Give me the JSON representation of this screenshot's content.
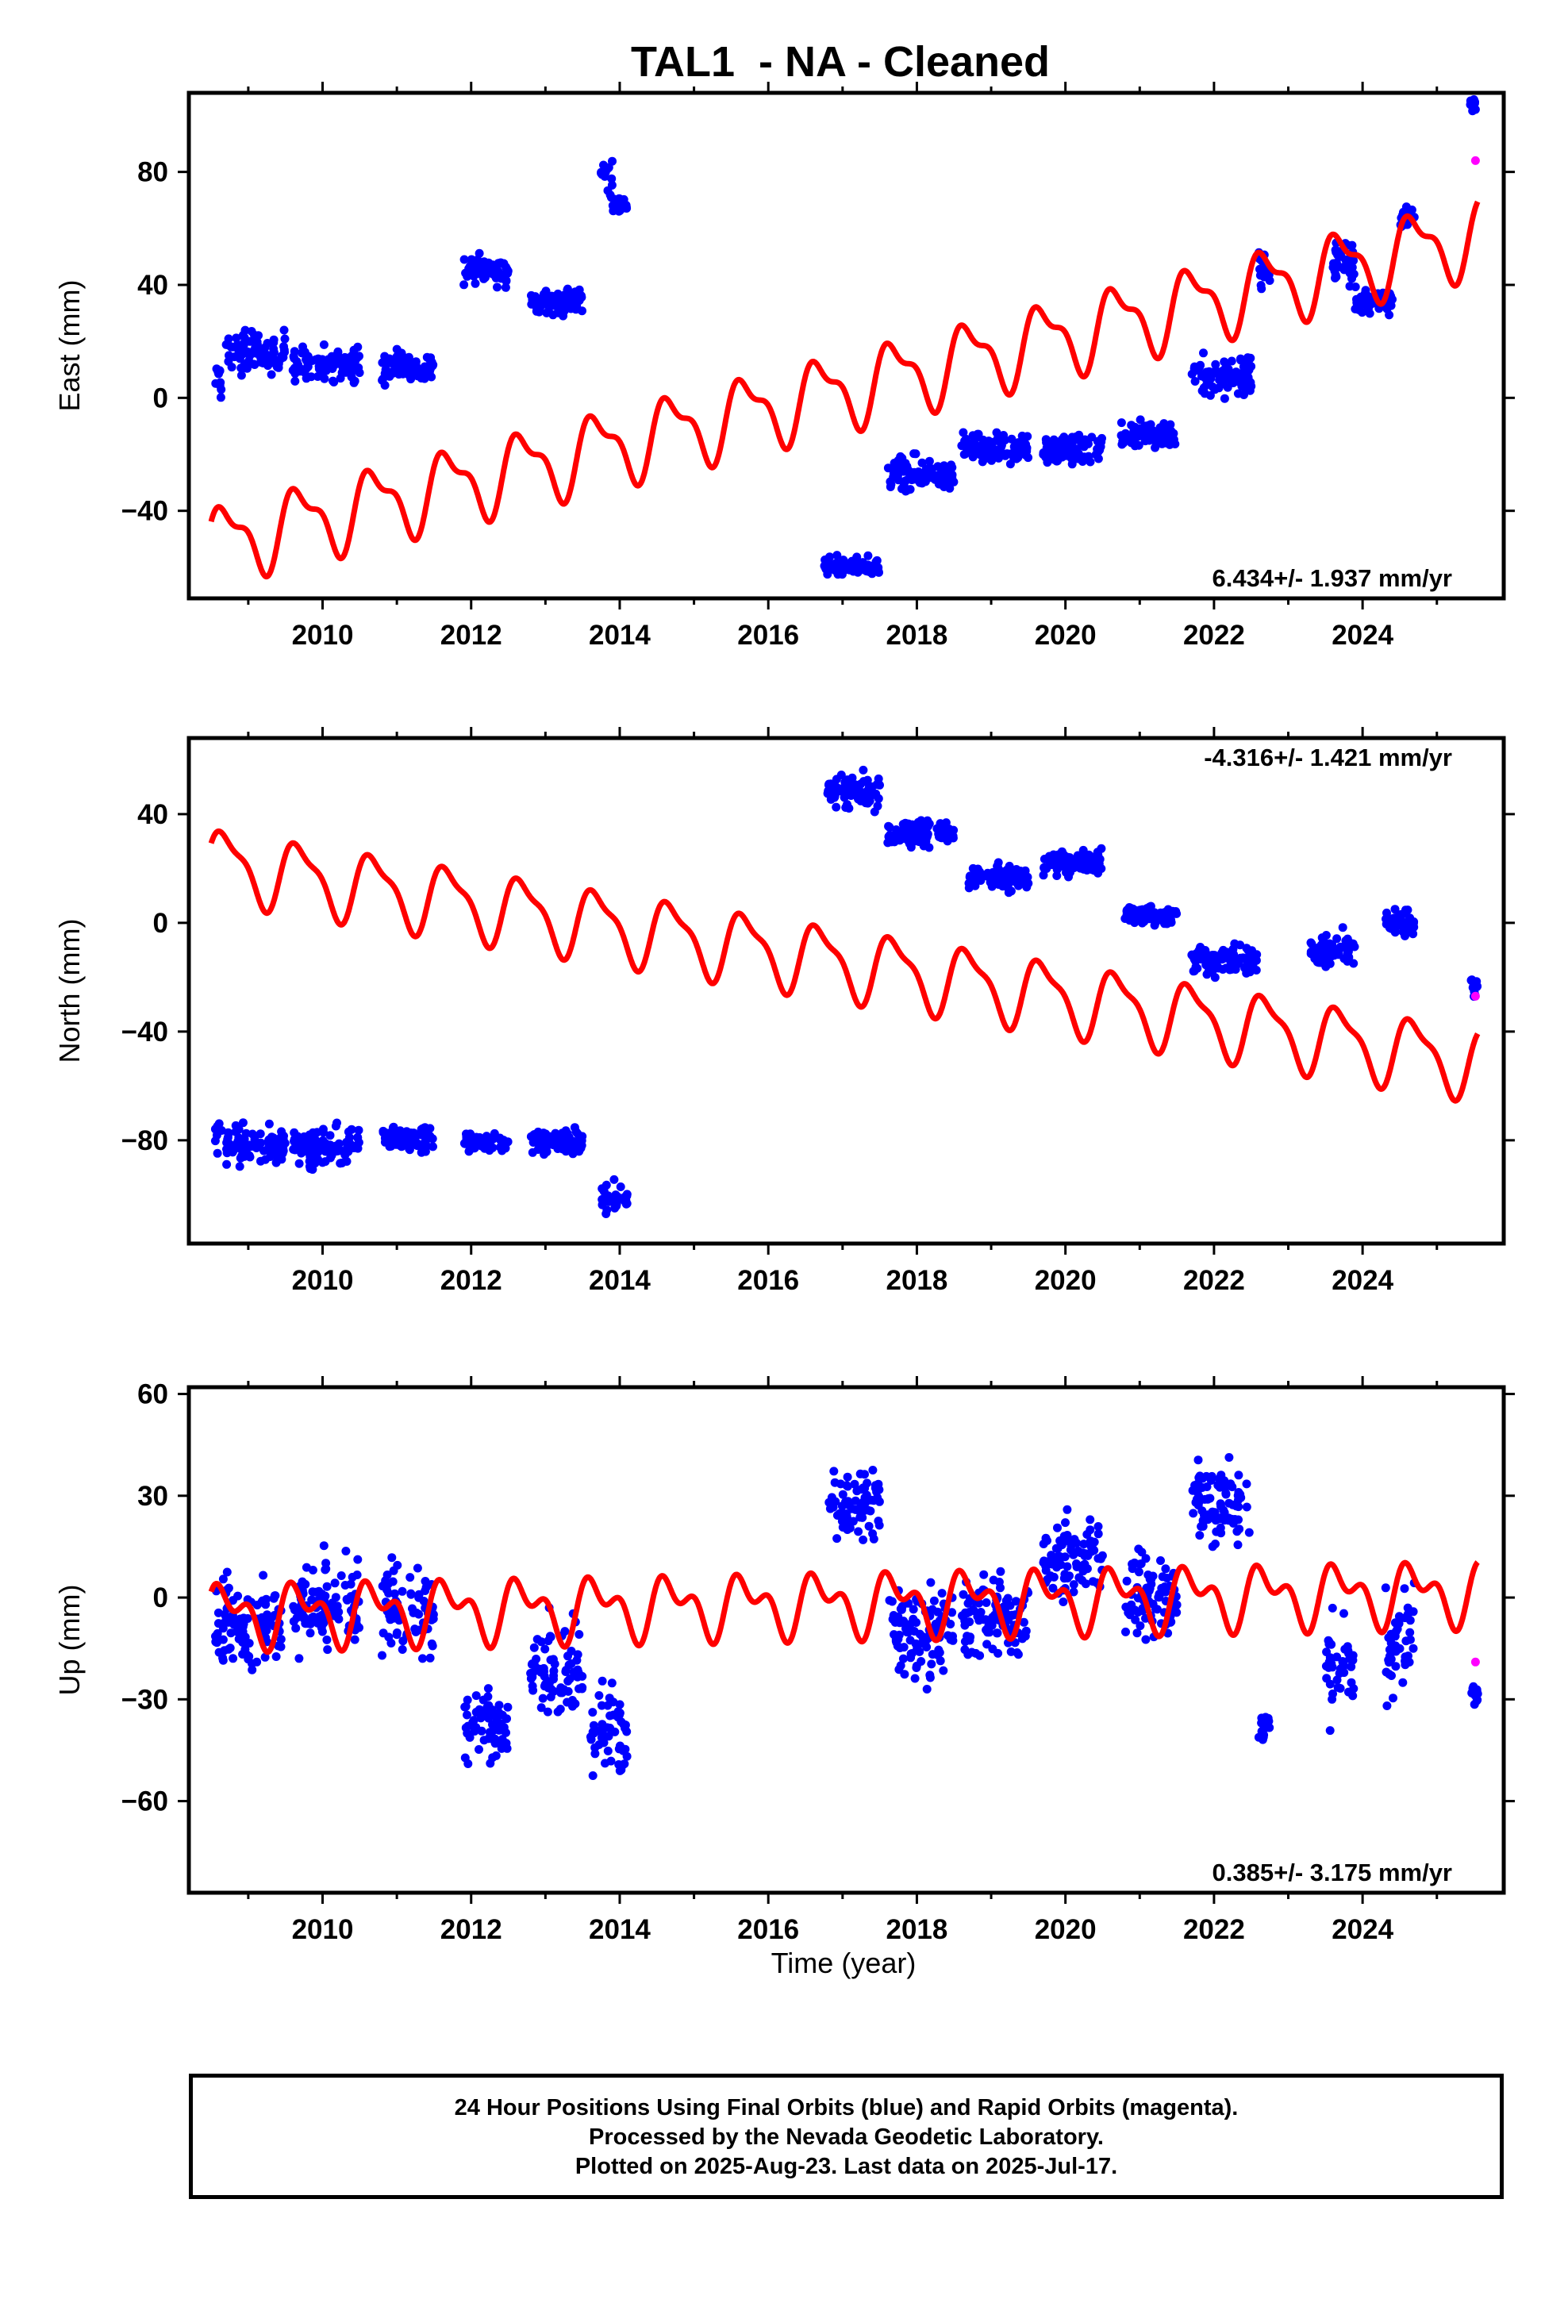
{
  "figure": {
    "title": "TAL1  - NA - Cleaned",
    "xlabel": "Time (year)",
    "colors": {
      "final_orbits": "#0000ff",
      "rapid_orbits": "#ff00ff",
      "model": "#ff0000",
      "frame": "#000000"
    }
  },
  "footer": {
    "line1": "24 Hour Positions Using Final Orbits (blue) and Rapid Orbits (magenta).",
    "line2": "Processed by the Nevada Geodetic Laboratory.",
    "line3": "Plotted on 2025-Aug-23. Last data on 2025-Jul-17."
  },
  "chart_data": [
    {
      "type": "scatter",
      "ylabel": "East (mm)",
      "rate_text": "6.434+/- 1.937 mm/yr",
      "rate_position": "bottom-right",
      "xlim": [
        2008.2,
        2025.9
      ],
      "ylim": [
        -71,
        108
      ],
      "xticks": [
        2010,
        2012,
        2014,
        2016,
        2018,
        2020,
        2022,
        2024
      ],
      "yticks": [
        -40,
        0,
        40,
        80
      ],
      "grid": false,
      "final_orbits_clusters": [
        {
          "t_start": 2008.55,
          "t_end": 2008.65,
          "mean": 6,
          "spread": 12
        },
        {
          "t_start": 2008.7,
          "t_end": 2009.5,
          "mean": 16,
          "spread": 12
        },
        {
          "t_start": 2009.6,
          "t_end": 2010.5,
          "mean": 12,
          "spread": 10
        },
        {
          "t_start": 2010.8,
          "t_end": 2011.5,
          "mean": 11,
          "spread": 10
        },
        {
          "t_start": 2011.9,
          "t_end": 2012.5,
          "mean": 45,
          "spread": 8
        },
        {
          "t_start": 2012.8,
          "t_end": 2013.5,
          "mean": 34,
          "spread": 8
        },
        {
          "t_start": 2013.75,
          "t_end": 2013.9,
          "mean": 78,
          "spread": 12
        },
        {
          "t_start": 2013.9,
          "t_end": 2014.1,
          "mean": 68,
          "spread": 4
        },
        {
          "t_start": 2016.75,
          "t_end": 2017.5,
          "mean": -60,
          "spread": 6
        },
        {
          "t_start": 2017.6,
          "t_end": 2018.5,
          "mean": -27,
          "spread": 10
        },
        {
          "t_start": 2018.6,
          "t_end": 2019.5,
          "mean": -18,
          "spread": 8
        },
        {
          "t_start": 2019.7,
          "t_end": 2020.5,
          "mean": -18,
          "spread": 8
        },
        {
          "t_start": 2020.75,
          "t_end": 2021.5,
          "mean": -13,
          "spread": 8
        },
        {
          "t_start": 2021.7,
          "t_end": 2022.5,
          "mean": 8,
          "spread": 14
        },
        {
          "t_start": 2022.6,
          "t_end": 2022.75,
          "mean": 45,
          "spread": 14
        },
        {
          "t_start": 2023.6,
          "t_end": 2023.9,
          "mean": 48,
          "spread": 14
        },
        {
          "t_start": 2023.9,
          "t_end": 2024.4,
          "mean": 34,
          "spread": 8
        },
        {
          "t_start": 2024.5,
          "t_end": 2024.7,
          "mean": 64,
          "spread": 6
        },
        {
          "t_start": 2025.45,
          "t_end": 2025.55,
          "mean": 104,
          "spread": 4
        }
      ],
      "rapid_orbits_points": [
        {
          "t": 2025.52,
          "y": 84
        }
      ],
      "model": {
        "intercept_2008": -52,
        "rate_mm_yr": 6.434,
        "annual_amp": 12,
        "semiannual_amp": 5,
        "t_start": 2008.5,
        "t_end": 2025.55
      }
    },
    {
      "type": "scatter",
      "ylabel": "North (mm)",
      "rate_text": "-4.316+/- 1.421 mm/yr",
      "rate_position": "top-right",
      "xlim": [
        2008.2,
        2025.9
      ],
      "ylim": [
        -118,
        68
      ],
      "xticks": [
        2010,
        2012,
        2014,
        2016,
        2018,
        2020,
        2022,
        2024
      ],
      "yticks": [
        -80,
        -40,
        0,
        40
      ],
      "grid": false,
      "final_orbits_clusters": [
        {
          "t_start": 2008.55,
          "t_end": 2008.65,
          "mean": -78,
          "spread": 12
        },
        {
          "t_start": 2008.7,
          "t_end": 2009.5,
          "mean": -82,
          "spread": 10
        },
        {
          "t_start": 2009.6,
          "t_end": 2010.5,
          "mean": -82,
          "spread": 12
        },
        {
          "t_start": 2010.8,
          "t_end": 2011.5,
          "mean": -79,
          "spread": 8
        },
        {
          "t_start": 2011.9,
          "t_end": 2012.5,
          "mean": -81,
          "spread": 6
        },
        {
          "t_start": 2012.8,
          "t_end": 2013.5,
          "mean": -81,
          "spread": 8
        },
        {
          "t_start": 2013.75,
          "t_end": 2014.1,
          "mean": -101,
          "spread": 8
        },
        {
          "t_start": 2016.8,
          "t_end": 2017.5,
          "mean": 48,
          "spread": 10
        },
        {
          "t_start": 2017.6,
          "t_end": 2018.5,
          "mean": 33,
          "spread": 8
        },
        {
          "t_start": 2018.7,
          "t_end": 2019.5,
          "mean": 17,
          "spread": 8
        },
        {
          "t_start": 2019.7,
          "t_end": 2020.5,
          "mean": 22,
          "spread": 8
        },
        {
          "t_start": 2020.8,
          "t_end": 2021.5,
          "mean": 3,
          "spread": 6
        },
        {
          "t_start": 2021.7,
          "t_end": 2022.6,
          "mean": -14,
          "spread": 8
        },
        {
          "t_start": 2023.3,
          "t_end": 2023.9,
          "mean": -10,
          "spread": 10
        },
        {
          "t_start": 2024.3,
          "t_end": 2024.7,
          "mean": 0,
          "spread": 8
        },
        {
          "t_start": 2025.45,
          "t_end": 2025.55,
          "mean": -22,
          "spread": 8
        }
      ],
      "rapid_orbits_points": [
        {
          "t": 2025.52,
          "y": -27
        }
      ],
      "model": {
        "intercept_2008": 22,
        "rate_mm_yr": -4.316,
        "annual_amp": 12,
        "semiannual_amp": 4,
        "t_start": 2008.5,
        "t_end": 2025.55
      }
    },
    {
      "type": "scatter",
      "ylabel": "Up (mm)",
      "rate_text": "0.385+/- 3.175 mm/yr",
      "rate_position": "bottom-right",
      "xlim": [
        2008.2,
        2025.9
      ],
      "ylim": [
        -87,
        62
      ],
      "xticks": [
        2010,
        2012,
        2014,
        2016,
        2018,
        2020,
        2022,
        2024
      ],
      "yticks": [
        -60,
        -30,
        0,
        30,
        60
      ],
      "grid": false,
      "final_orbits_clusters": [
        {
          "t_start": 2008.55,
          "t_end": 2009.5,
          "mean": -8,
          "spread": 24
        },
        {
          "t_start": 2009.6,
          "t_end": 2010.5,
          "mean": -2,
          "spread": 24
        },
        {
          "t_start": 2010.8,
          "t_end": 2011.5,
          "mean": -4,
          "spread": 22
        },
        {
          "t_start": 2011.9,
          "t_end": 2012.5,
          "mean": -38,
          "spread": 18
        },
        {
          "t_start": 2012.8,
          "t_end": 2013.5,
          "mean": -22,
          "spread": 22
        },
        {
          "t_start": 2013.6,
          "t_end": 2014.1,
          "mean": -40,
          "spread": 24
        },
        {
          "t_start": 2016.8,
          "t_end": 2017.5,
          "mean": 28,
          "spread": 16
        },
        {
          "t_start": 2017.6,
          "t_end": 2018.5,
          "mean": -10,
          "spread": 22
        },
        {
          "t_start": 2018.6,
          "t_end": 2019.5,
          "mean": -6,
          "spread": 22
        },
        {
          "t_start": 2019.7,
          "t_end": 2020.5,
          "mean": 12,
          "spread": 20
        },
        {
          "t_start": 2020.8,
          "t_end": 2021.5,
          "mean": 0,
          "spread": 20
        },
        {
          "t_start": 2021.7,
          "t_end": 2022.5,
          "mean": 28,
          "spread": 22
        },
        {
          "t_start": 2022.6,
          "t_end": 2022.75,
          "mean": -38,
          "spread": 8
        },
        {
          "t_start": 2023.5,
          "t_end": 2023.9,
          "mean": -20,
          "spread": 24
        },
        {
          "t_start": 2024.3,
          "t_end": 2024.7,
          "mean": -14,
          "spread": 28
        },
        {
          "t_start": 2025.45,
          "t_end": 2025.55,
          "mean": -28,
          "spread": 6
        }
      ],
      "rapid_orbits_points": [
        {
          "t": 2025.52,
          "y": -19
        }
      ],
      "model": {
        "intercept_2008": -5,
        "rate_mm_yr": 0.385,
        "annual_amp": 7,
        "semiannual_amp": 5,
        "t_start": 2008.5,
        "t_end": 2025.55
      }
    }
  ]
}
